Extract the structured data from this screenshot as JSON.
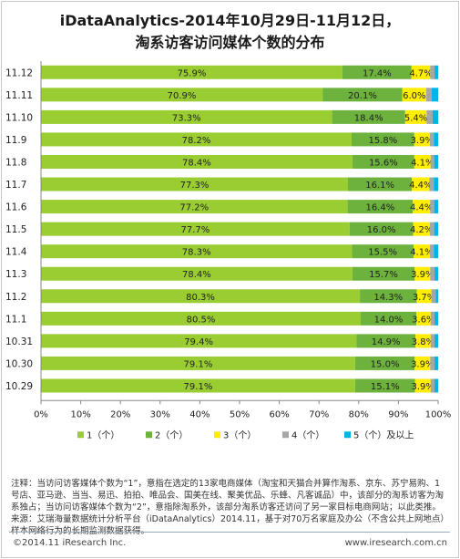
{
  "title_line1": "iDataAnalytics-2014年10月29日-11月12日，",
  "title_line2": "淘系访客访问媒体个数的分布",
  "chart_data": {
    "type": "bar",
    "orientation": "horizontal",
    "stacked": true,
    "categories": [
      "11.12",
      "11.11",
      "11.10",
      "11.9",
      "11.8",
      "11.7",
      "11.6",
      "11.5",
      "11.4",
      "11.3",
      "11.2",
      "11.1",
      "10.31",
      "10.30",
      "10.29"
    ],
    "series": [
      {
        "name": "1（个）",
        "color": "#9acd32",
        "values": [
          75.9,
          70.9,
          73.3,
          78.2,
          78.4,
          77.3,
          77.2,
          77.7,
          78.3,
          78.4,
          80.3,
          80.5,
          79.4,
          79.1,
          79.1
        ],
        "labels": [
          "75.9%",
          "70.9%",
          "73.3%",
          "78.2%",
          "78.4%",
          "77.3%",
          "77.2%",
          "77.7%",
          "78.3%",
          "78.4%",
          "80.3%",
          "80.5%",
          "79.4%",
          "79.1%",
          "79.1%"
        ]
      },
      {
        "name": "2（个）",
        "color": "#6cb23c",
        "values": [
          17.4,
          20.1,
          18.4,
          15.8,
          15.6,
          16.1,
          16.4,
          16.0,
          15.5,
          15.7,
          14.3,
          14.0,
          14.9,
          15.0,
          15.1
        ],
        "labels": [
          "17.4%",
          "20.1%",
          "18.4%",
          "15.8%",
          "15.6%",
          "16.1%",
          "16.4%",
          "16.0%",
          "15.5%",
          "15.7%",
          "14.3%",
          "14.0%",
          "14.9%",
          "15.0%",
          "15.1%"
        ]
      },
      {
        "name": "3（个）",
        "color": "#ffee00",
        "values": [
          4.7,
          6.0,
          5.4,
          3.9,
          4.1,
          4.4,
          4.4,
          4.2,
          4.1,
          3.9,
          3.7,
          3.6,
          3.8,
          3.9,
          3.9
        ],
        "labels": [
          "4.7%",
          "6.0%",
          "5.4%",
          "3.9%",
          "4.1%",
          "4.4%",
          "4.4%",
          "4.2%",
          "4.1%",
          "3.9%",
          "3.7%",
          "3.6%",
          "3.8%",
          "3.9%",
          "3.9%"
        ]
      },
      {
        "name": "4（个）",
        "color": "#a6a6a6",
        "values": [
          1.1,
          1.4,
          1.5,
          1.0,
          0.9,
          1.1,
          1.0,
          1.1,
          1.0,
          1.1,
          1.1,
          1.0,
          1.0,
          1.1,
          1.0
        ]
      },
      {
        "name": "5（个）及以上",
        "color": "#00b4e6",
        "values": [
          0.9,
          1.6,
          1.4,
          1.1,
          1.0,
          1.1,
          1.0,
          1.0,
          1.1,
          0.9,
          0.6,
          0.9,
          0.9,
          0.9,
          0.9
        ]
      }
    ],
    "xticks": [
      "0%",
      "10%",
      "20%",
      "30%",
      "40%",
      "50%",
      "60%",
      "70%",
      "80%",
      "90%",
      "100%"
    ],
    "xlim": [
      0,
      100
    ],
    "grid": false,
    "legend_position": "bottom"
  },
  "notes": {
    "line1": "注释：当访问访客媒体个数为“1”，意指在选定的13家电商媒体（淘宝和天猫合并算作淘系、京东、苏宁易购、1号店、亚马逊、当当、易迅、拍拍、唯品会、国美在线、聚美优品、乐蜂、凡客诚品）中，该部分的淘系访客为淘系独占；当访问访客媒体个数为“2”，意指除淘系外，该部分淘系访客还访问了另一家目标电商网站；以此类推。",
    "line2": "来源：艾瑞海量数据统计分析平台（iDataAnalytics）2014.11，基于对70万名家庭及办公（不含公共上网地点）样本网络行为的长期监测数据获得。"
  },
  "footer": {
    "left": "©2014.11 iResearch Inc.",
    "right": "www.iresearch.com.cn"
  }
}
